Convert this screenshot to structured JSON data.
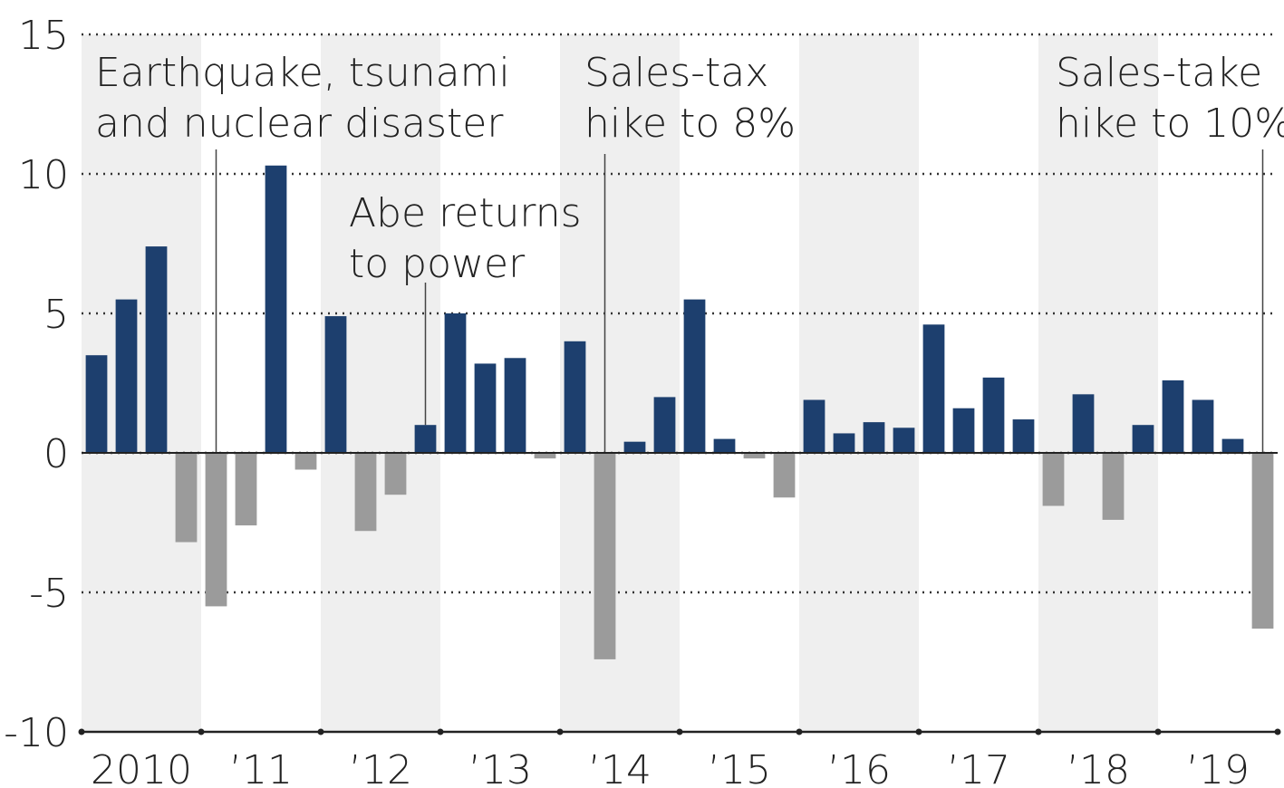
{
  "chart_data": {
    "type": "bar",
    "groups": [
      "2010",
      "’11",
      "’12",
      "’13",
      "’14",
      "’15",
      "’16",
      "’17",
      "’18",
      "’19"
    ],
    "values": [
      3.5,
      5.5,
      7.4,
      -3.2,
      -5.5,
      -2.6,
      10.3,
      -0.6,
      4.9,
      -2.8,
      -1.5,
      1.0,
      5.0,
      3.2,
      3.4,
      -0.2,
      4.0,
      -7.4,
      0.4,
      2.0,
      5.5,
      0.5,
      -0.2,
      -1.6,
      1.9,
      0.7,
      1.1,
      0.9,
      4.6,
      1.6,
      2.7,
      1.2,
      -1.9,
      2.1,
      -2.4,
      1.0,
      2.6,
      1.9,
      0.5,
      -6.3
    ],
    "positive_color": "#1d3f6e",
    "negative_color": "#9b9b9b",
    "ylim": [
      -10,
      15
    ],
    "yticks": [
      -10,
      -5,
      0,
      5,
      10,
      15
    ],
    "grid": true,
    "annotations": [
      {
        "lines": [
          "Earthquake, tsunami",
          "and nuclear disaster"
        ]
      },
      {
        "lines": [
          "Abe returns",
          "to power"
        ]
      },
      {
        "lines": [
          "Sales-tax",
          "hike to 8%"
        ]
      },
      {
        "lines": [
          "Sales-take",
          "hike to 10%"
        ]
      }
    ]
  }
}
